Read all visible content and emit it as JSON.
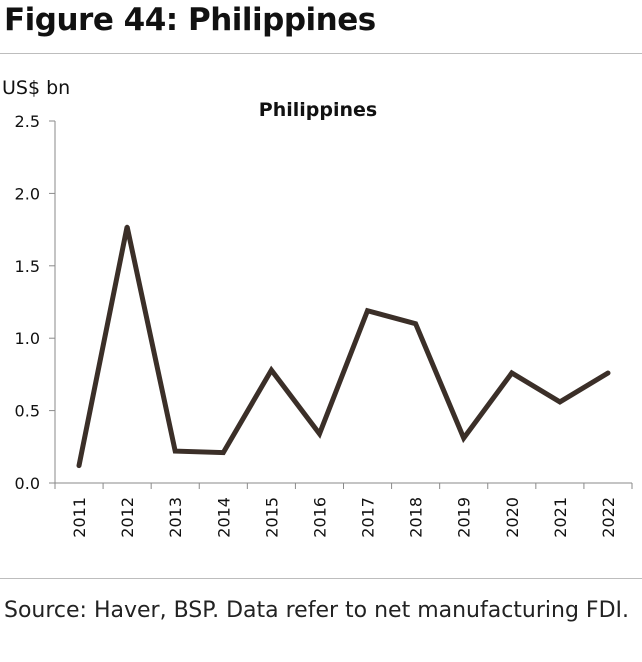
{
  "figure_title": "Figure 44: Philippines",
  "source_note": "Source: Haver, BSP. Data refer to net manufacturing FDI.",
  "chart_data": {
    "type": "line",
    "title": "Philippines",
    "unit_label": "US$ bn",
    "xlabel": "",
    "ylabel": "",
    "ylim": [
      0,
      2.5
    ],
    "y_ticks": [
      "0.0",
      "0.5",
      "1.0",
      "1.5",
      "2.0",
      "2.5"
    ],
    "categories": [
      "2011",
      "2012",
      "2013",
      "2014",
      "2015",
      "2016",
      "2017",
      "2018",
      "2019",
      "2020",
      "2021",
      "2022"
    ],
    "series": [
      {
        "values": [
          0.12,
          1.77,
          0.22,
          0.21,
          0.78,
          0.34,
          1.19,
          1.1,
          0.31,
          0.76,
          0.56,
          0.76
        ]
      }
    ],
    "grid": false,
    "legend": "none",
    "line_color": "#3b2f28",
    "axis_color": "#8a8a8a"
  }
}
